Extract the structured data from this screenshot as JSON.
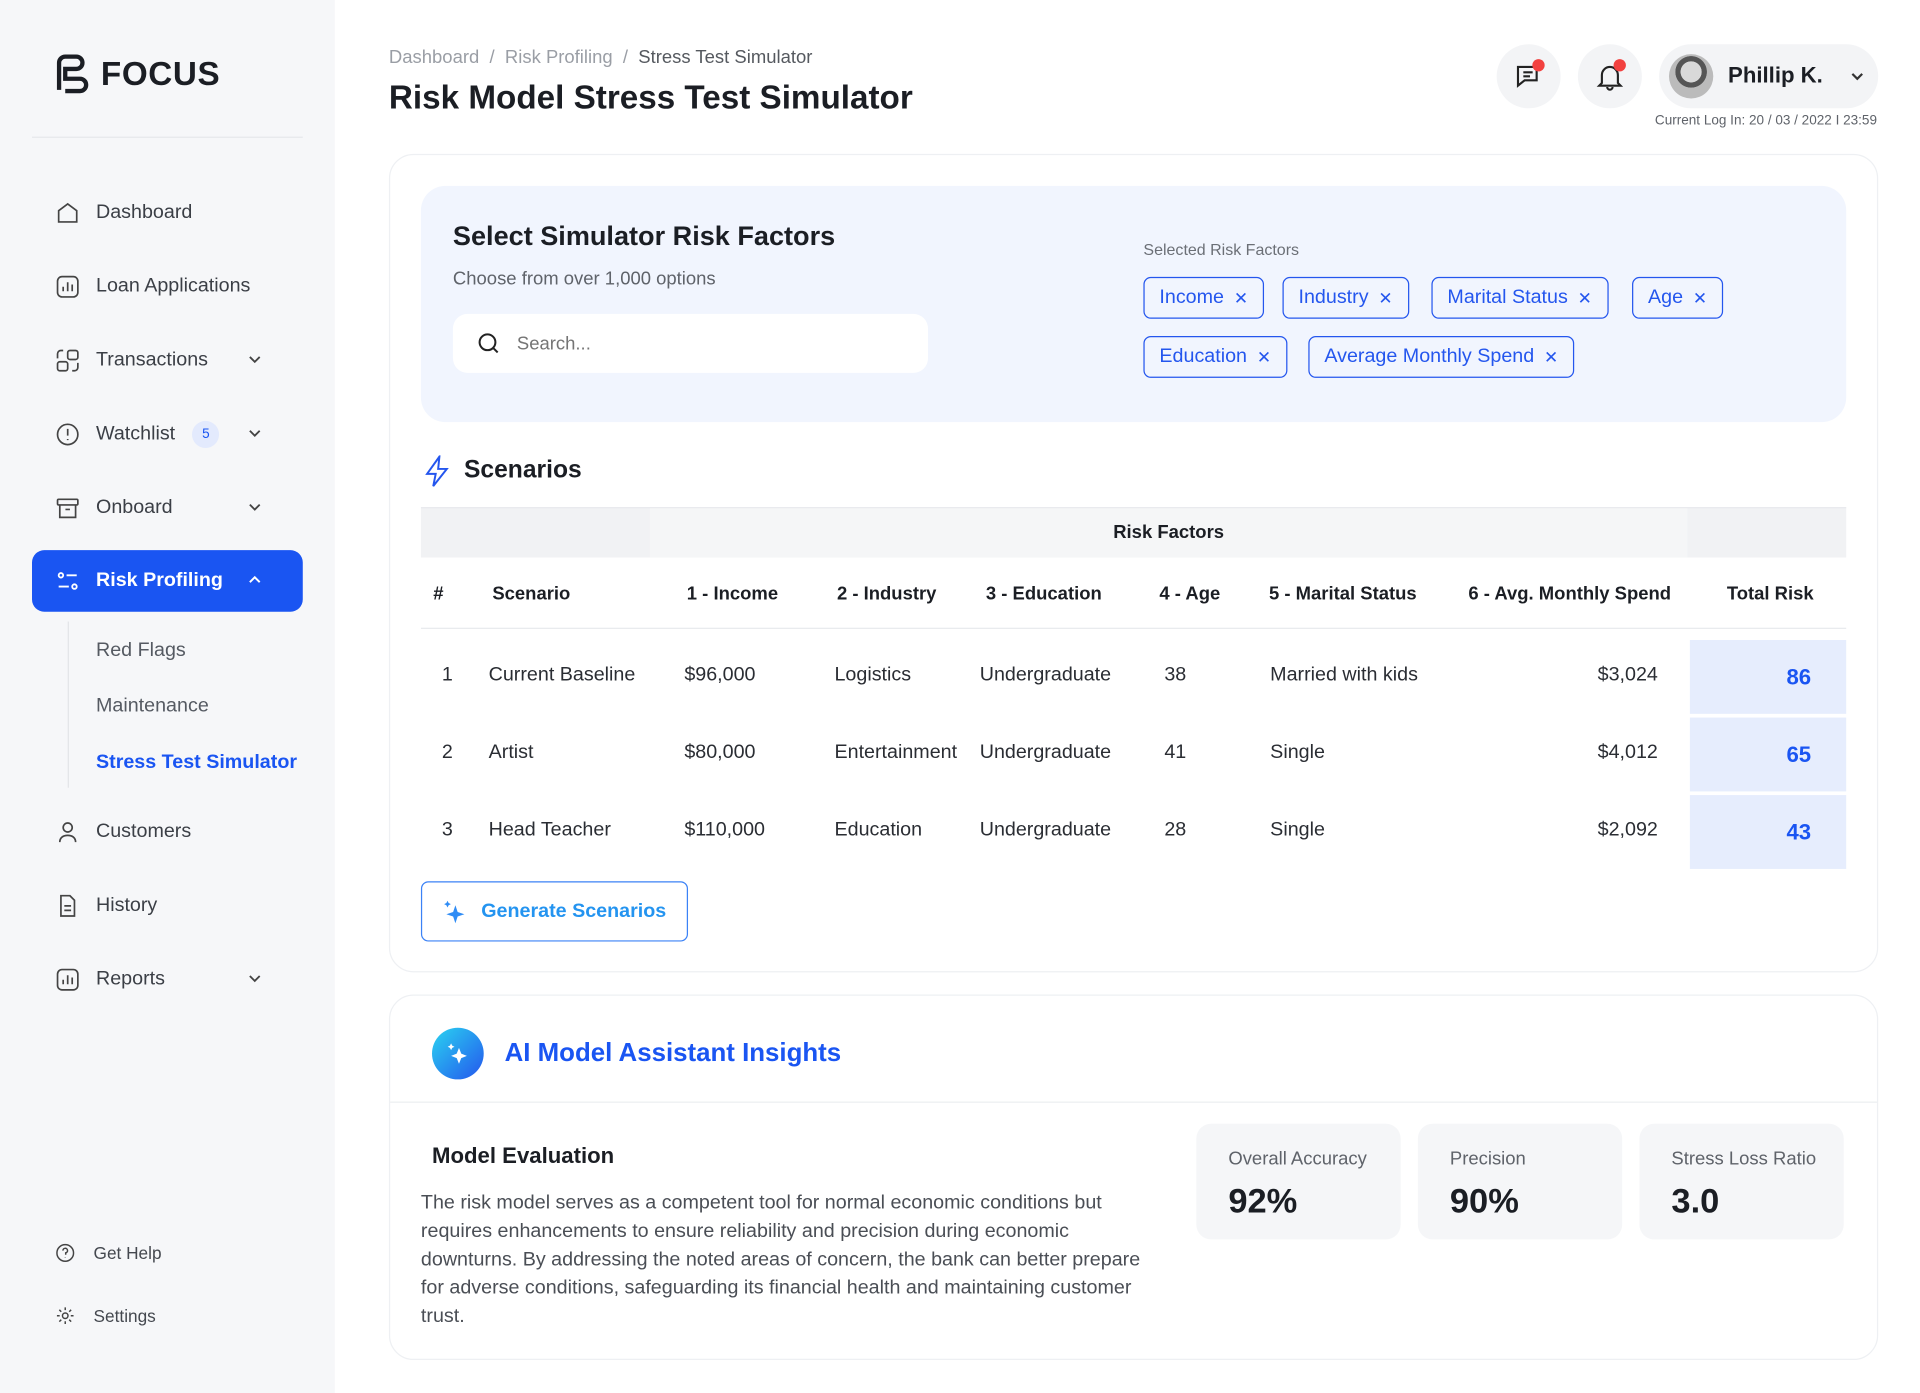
{
  "brand": {
    "name": "FOCUS"
  },
  "sidebar": {
    "items": [
      {
        "label": "Dashboard",
        "icon": "home-icon"
      },
      {
        "label": "Loan Applications",
        "icon": "chart-icon"
      },
      {
        "label": "Transactions",
        "icon": "transactions-icon",
        "expandable": true
      },
      {
        "label": "Watchlist",
        "icon": "alert-icon",
        "badge": "5",
        "expandable": true
      },
      {
        "label": "Onboard",
        "icon": "archive-icon",
        "expandable": true
      },
      {
        "label": "Risk Profiling",
        "icon": "sliders-icon",
        "expandable": true,
        "active": true
      }
    ],
    "sub_items": [
      {
        "label": "Red Flags"
      },
      {
        "label": "Maintenance"
      },
      {
        "label": "Stress Test Simulator",
        "active": true
      }
    ],
    "items_after": [
      {
        "label": "Customers",
        "icon": "user-icon"
      },
      {
        "label": "History",
        "icon": "document-icon"
      },
      {
        "label": "Reports",
        "icon": "chart-icon",
        "expandable": true
      }
    ],
    "footer": [
      {
        "label": "Get Help",
        "icon": "help-icon"
      },
      {
        "label": "Settings",
        "icon": "gear-icon"
      }
    ]
  },
  "header": {
    "breadcrumb": [
      "Dashboard",
      "Risk Profiling",
      "Stress Test Simulator"
    ],
    "title": "Risk Model Stress Test Simulator",
    "user_name": "Phillip K.",
    "login_text": "Current Log In: 20 / 03 / 2022 I 23:59"
  },
  "factors": {
    "title": "Select Simulator Risk Factors",
    "subtitle": "Choose from over 1,000 options",
    "search_placeholder": "Search...",
    "selected_label": "Selected Risk Factors",
    "chips": [
      "Income",
      "Industry",
      "Marital Status",
      "Age",
      "Education",
      "Average Monthly Spend"
    ]
  },
  "scenarios": {
    "title": "Scenarios",
    "group_header": "Risk Factors",
    "columns": [
      "#",
      "Scenario",
      "1 - Income",
      "2 - Industry",
      "3 - Education",
      "4 - Age",
      "5 - Marital Status",
      "6 - Avg. Monthly Spend",
      "Total Risk"
    ],
    "rows": [
      [
        "1",
        "Current Baseline",
        "$96,000",
        "Logistics",
        "Undergraduate",
        "38",
        "Married with kids",
        "$3,024",
        "86"
      ],
      [
        "2",
        "Artist",
        "$80,000",
        "Entertainment",
        "Undergraduate",
        "41",
        "Single",
        "$4,012",
        "65"
      ],
      [
        "3",
        "Head Teacher",
        "$110,000",
        "Education",
        "Undergraduate",
        "28",
        "Single",
        "$2,092",
        "43"
      ]
    ],
    "generate_label": "Generate Scenarios"
  },
  "insights": {
    "title": "AI Model Assistant Insights",
    "eval_title": "Model Evaluation",
    "eval_text": "The risk model serves as a competent tool for normal economic conditions but requires enhancements to ensure reliability and precision during economic downturns. By addressing the noted areas of concern, the bank can better prepare for adverse conditions, safeguarding its financial health and maintaining customer trust.",
    "stats": [
      {
        "label": "Overall Accuracy",
        "value": "92%"
      },
      {
        "label": "Precision",
        "value": "90%"
      },
      {
        "label": "Stress Loss Ratio",
        "value": "3.0"
      }
    ]
  },
  "colors": {
    "accent": "#1a55f2",
    "notification": "#f2413f",
    "panel": "#f1f5fe"
  }
}
